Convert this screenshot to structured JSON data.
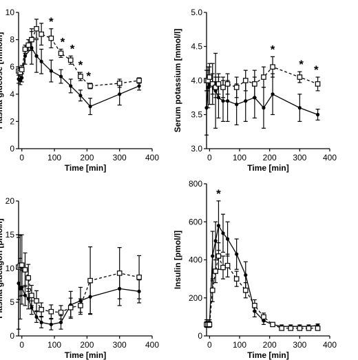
{
  "chart_data": [
    {
      "type": "line",
      "xlabel": "Time [min]",
      "ylabel": "Plasma glucose [mmol/l]",
      "xlim": [
        -10,
        400
      ],
      "ylim": [
        0,
        10
      ],
      "xticks": [
        0,
        100,
        200,
        300,
        400
      ],
      "yticks": [
        0,
        2,
        4,
        6,
        8,
        10
      ],
      "significance": [
        90,
        125,
        155,
        180,
        205
      ],
      "series": [
        {
          "style": "solid-filled",
          "x": [
            -10,
            -5,
            0,
            10,
            30,
            45,
            60,
            90,
            120,
            150,
            180,
            210,
            300,
            360
          ],
          "y": [
            5.1,
            5.0,
            5.2,
            6.8,
            7.4,
            6.8,
            6.4,
            5.7,
            5.3,
            4.6,
            3.9,
            3.1,
            4.0,
            4.6
          ],
          "err": [
            0.3,
            0.3,
            0.3,
            0.6,
            1.2,
            1.2,
            0.9,
            0.8,
            0.5,
            0.5,
            0.4,
            0.6,
            0.8,
            0.3
          ]
        },
        {
          "style": "dashed-open",
          "x": [
            -10,
            -5,
            0,
            10,
            20,
            30,
            45,
            60,
            90,
            120,
            150,
            180,
            210,
            300,
            360
          ],
          "y": [
            5.7,
            5.6,
            5.8,
            7.3,
            7.6,
            8.0,
            8.8,
            8.4,
            8.1,
            7.0,
            6.5,
            5.3,
            4.6,
            4.8,
            5.0
          ],
          "err": [
            0.3,
            0.3,
            0.3,
            0.3,
            0.4,
            0.8,
            0.7,
            0.8,
            0.7,
            0.3,
            0.3,
            0.3,
            0.2,
            0.3,
            0.2
          ]
        }
      ]
    },
    {
      "type": "line",
      "xlabel": "Time [min]",
      "ylabel": "Serum potassium [mmol/l]",
      "xlim": [
        -10,
        400
      ],
      "ylim": [
        3.0,
        5.0
      ],
      "xticks": [
        0,
        100,
        200,
        300,
        400
      ],
      "yticks": [
        3.0,
        3.5,
        4.0,
        4.5,
        5.0
      ],
      "significance": [
        210,
        305,
        355
      ],
      "series": [
        {
          "style": "solid-filled",
          "x": [
            -10,
            -5,
            0,
            10,
            20,
            30,
            45,
            60,
            90,
            120,
            150,
            180,
            210,
            300,
            360
          ],
          "y": [
            3.6,
            3.9,
            3.95,
            3.95,
            3.85,
            3.75,
            3.7,
            3.7,
            3.65,
            3.7,
            3.75,
            3.6,
            3.8,
            3.6,
            3.5
          ],
          "err": [
            0.4,
            0.3,
            0.3,
            0.3,
            0.55,
            0.3,
            0.3,
            0.3,
            0.3,
            0.3,
            0.3,
            0.3,
            0.3,
            0.2,
            0.08
          ]
        },
        {
          "style": "dashed-open",
          "x": [
            -10,
            -5,
            0,
            10,
            20,
            30,
            45,
            60,
            90,
            120,
            150,
            180,
            210,
            300,
            360
          ],
          "y": [
            4.0,
            4.0,
            4.05,
            3.95,
            3.9,
            3.95,
            3.9,
            3.95,
            3.9,
            4.0,
            3.95,
            4.05,
            4.2,
            4.05,
            3.95
          ],
          "err": [
            0.15,
            0.15,
            0.15,
            0.15,
            0.15,
            0.15,
            0.15,
            0.15,
            0.15,
            0.15,
            0.2,
            0.15,
            0.15,
            0.08,
            0.1
          ]
        }
      ]
    },
    {
      "type": "line",
      "xlabel": "Time [min]",
      "ylabel": "Plasma glucagon [pmol/l]",
      "xlim": [
        -10,
        400
      ],
      "ylim": [
        0,
        20
      ],
      "xticks": [
        0,
        100,
        200,
        300,
        400
      ],
      "yticks": [
        0,
        5,
        10,
        15,
        20
      ],
      "significance": [],
      "series": [
        {
          "style": "solid-filled",
          "x": [
            -10,
            -5,
            0,
            10,
            20,
            30,
            45,
            60,
            90,
            120,
            150,
            180,
            210,
            300,
            360
          ],
          "y": [
            7.8,
            7.0,
            7.2,
            6.0,
            5.5,
            4.2,
            2.8,
            2.0,
            1.7,
            2.0,
            4.6,
            5.2,
            5.8,
            7.0,
            6.6
          ],
          "err": [
            6.8,
            4.5,
            2.5,
            1.5,
            1.5,
            1.0,
            0.8,
            0.8,
            0.8,
            1.0,
            2.0,
            2.0,
            2.5,
            2.5,
            1.7
          ]
        },
        {
          "style": "dashed-open",
          "x": [
            -10,
            -5,
            0,
            10,
            20,
            30,
            45,
            60,
            90,
            120,
            150,
            180,
            210,
            300,
            360
          ],
          "y": [
            10.2,
            10.4,
            10.5,
            9.8,
            8.6,
            6.0,
            5.2,
            3.9,
            3.6,
            3.5,
            4.2,
            4.5,
            8.2,
            9.3,
            8.7
          ],
          "err": [
            4.8,
            4.5,
            4.5,
            2.5,
            2.0,
            1.5,
            1.5,
            1.0,
            1.0,
            1.0,
            1.4,
            1.0,
            5.0,
            3.8,
            3.2
          ]
        }
      ]
    },
    {
      "type": "line",
      "xlabel": "Time [min]",
      "ylabel": "Insulin [pmol/l]",
      "xlim": [
        -10,
        400
      ],
      "ylim": [
        0,
        800
      ],
      "xticks": [
        0,
        100,
        200,
        300,
        400
      ],
      "yticks": [
        0,
        200,
        400,
        600,
        800
      ],
      "significance": [
        30
      ],
      "series": [
        {
          "style": "solid-filled",
          "x": [
            -10,
            -5,
            0,
            10,
            20,
            30,
            45,
            60,
            90,
            120,
            150,
            180,
            210,
            240,
            270,
            300,
            330,
            360
          ],
          "y": [
            70,
            70,
            70,
            420,
            500,
            580,
            540,
            510,
            430,
            320,
            130,
            80,
            60,
            50,
            50,
            50,
            50,
            55
          ],
          "err": [
            15,
            15,
            15,
            130,
            100,
            130,
            100,
            90,
            80,
            70,
            30,
            20,
            10,
            8,
            8,
            8,
            8,
            8
          ]
        },
        {
          "style": "dashed-open",
          "x": [
            -10,
            -5,
            0,
            10,
            20,
            30,
            45,
            60,
            90,
            120,
            150,
            180,
            210,
            240,
            270,
            300,
            330,
            360
          ],
          "y": [
            60,
            60,
            60,
            240,
            340,
            420,
            360,
            370,
            300,
            240,
            160,
            100,
            60,
            40,
            40,
            40,
            40,
            40
          ],
          "err": [
            15,
            15,
            15,
            60,
            60,
            70,
            60,
            60,
            40,
            40,
            30,
            20,
            10,
            8,
            8,
            8,
            8,
            8
          ]
        }
      ]
    }
  ]
}
